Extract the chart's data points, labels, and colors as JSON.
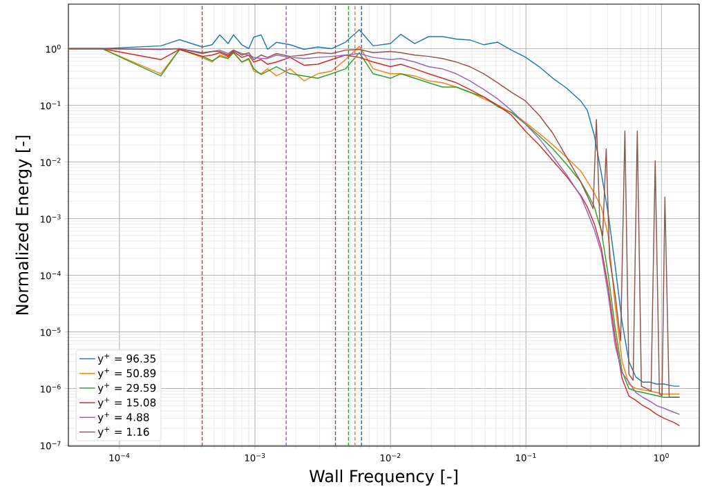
{
  "chart_data": {
    "type": "line",
    "xlabel": "Wall Frequency [-]",
    "ylabel": "Normalized Energy [-]",
    "log": "xy",
    "grid": true,
    "legend": "bottom left",
    "xlim": [
      4.2e-05,
      1.9
    ],
    "ylim": [
      9.6e-08,
      6.1
    ],
    "xticks": [
      {
        "value": 0.0001,
        "label": "10$^{−4}$"
      },
      {
        "value": 0.001,
        "label": "10$^{−3}$"
      },
      {
        "value": 0.01,
        "label": "10$^{−2}$"
      },
      {
        "value": 0.1,
        "label": "10$^{−1}$"
      },
      {
        "value": 1,
        "label": "10$^{0}$"
      }
    ],
    "yticks": [
      {
        "value": 1e-07,
        "label": "10$^{−7}$"
      },
      {
        "value": 1e-06,
        "label": "10$^{−6}$"
      },
      {
        "value": 1e-05,
        "label": "10$^{−5}$"
      },
      {
        "value": 0.0001,
        "label": "10$^{−4}$"
      },
      {
        "value": 0.001,
        "label": "10$^{−3}$"
      },
      {
        "value": 0.01,
        "label": "10$^{−2}$"
      },
      {
        "value": 0.1,
        "label": "10$^{−1}$"
      },
      {
        "value": 1,
        "label": "10$^{0}$"
      }
    ],
    "x": [
      4.25e-05,
      7.45e-05,
      0.000202,
      0.000278,
      0.000409,
      0.000483,
      0.00055,
      0.000633,
      0.000695,
      0.0008,
      0.0009,
      0.00098,
      0.00111,
      0.00124,
      0.00144,
      0.00182,
      0.0023,
      0.00291,
      0.00368,
      0.00466,
      0.00589,
      0.00745,
      0.01,
      0.0119,
      0.0151,
      0.0191,
      0.0242,
      0.0306,
      0.0386,
      0.0489,
      0.0618,
      0.0782,
      0.0989,
      0.125,
      0.158,
      0.2,
      0.253,
      0.284,
      0.32,
      0.36,
      0.405,
      0.455,
      0.512,
      0.575,
      0.647,
      0.728,
      0.819,
      0.92,
      1.04,
      1.24,
      1.36
    ],
    "series": [
      {
        "name": "y$^{+}$ = 96.35",
        "color": "#1f77b4",
        "values": [
          1.0,
          1.0,
          1.12,
          1.44,
          1.07,
          1.17,
          1.75,
          1.23,
          1.75,
          1.17,
          1.0,
          1.6,
          1.75,
          0.97,
          1.29,
          1.17,
          0.97,
          1.07,
          1.0,
          1.3,
          2.16,
          1.12,
          1.23,
          1.79,
          1.23,
          1.63,
          1.63,
          1.48,
          1.42,
          1.17,
          1.3,
          0.94,
          0.71,
          0.48,
          0.3,
          0.2,
          0.12,
          0.081,
          0.029,
          0.0063,
          0.0012,
          0.00015,
          1.5e-05,
          3e-06,
          1.6e-06,
          1.3e-06,
          1.3e-06,
          1.2e-06,
          1.2e-06,
          1.1e-06,
          1.1e-06
        ]
      },
      {
        "name": "y$^{+}$ = 50.89",
        "color": "#ff7f0e",
        "values": [
          1.0,
          1.0,
          0.36,
          0.97,
          0.7,
          0.58,
          0.77,
          0.7,
          0.85,
          0.58,
          0.64,
          0.4,
          0.36,
          0.44,
          0.33,
          0.44,
          0.27,
          0.36,
          0.4,
          0.64,
          1.1,
          0.44,
          0.36,
          0.36,
          0.33,
          0.27,
          0.25,
          0.21,
          0.17,
          0.13,
          0.1,
          0.075,
          0.05,
          0.032,
          0.02,
          0.012,
          0.007,
          0.0045,
          0.0028,
          0.0016,
          0.0005,
          3e-05,
          3e-06,
          1.2e-06,
          1e-06,
          9.5e-07,
          9e-07,
          8.5e-07,
          8e-07,
          8e-07,
          8e-07
        ]
      },
      {
        "name": "y$^{+}$ = 29.59",
        "color": "#2ca02c",
        "values": [
          1.0,
          1.0,
          0.33,
          0.97,
          0.73,
          0.61,
          0.73,
          0.67,
          0.85,
          0.58,
          0.67,
          0.44,
          0.35,
          0.4,
          0.48,
          0.36,
          0.33,
          0.3,
          0.36,
          0.44,
          0.85,
          0.36,
          0.3,
          0.36,
          0.3,
          0.25,
          0.21,
          0.21,
          0.17,
          0.14,
          0.095,
          0.074,
          0.047,
          0.029,
          0.017,
          0.009,
          0.0045,
          0.0028,
          0.0016,
          0.0006,
          0.0001,
          1.2e-05,
          2e-06,
          1e-06,
          9e-07,
          8.5e-07,
          8e-07,
          7.5e-07,
          7e-07,
          7e-07,
          7e-07
        ]
      },
      {
        "name": "y$^{+}$ = 15.08",
        "color": "#d62728",
        "values": [
          1.0,
          1.0,
          0.64,
          0.97,
          0.73,
          0.77,
          0.85,
          0.73,
          0.89,
          0.7,
          0.77,
          0.58,
          0.64,
          0.53,
          0.58,
          0.7,
          0.51,
          0.53,
          0.64,
          0.77,
          0.7,
          0.58,
          0.48,
          0.53,
          0.44,
          0.36,
          0.3,
          0.25,
          0.19,
          0.14,
          0.1,
          0.067,
          0.035,
          0.02,
          0.0105,
          0.0055,
          0.0026,
          0.0016,
          0.0008,
          0.0003,
          6e-05,
          8e-06,
          1.5e-06,
          7.4e-07,
          6.2e-07,
          5e-07,
          4.3e-07,
          3.5e-07,
          3e-07,
          2.5e-07,
          2.2e-07
        ]
      },
      {
        "name": "y$^{+}$ = 4.88",
        "color": "#9467bd",
        "values": [
          1.0,
          1.0,
          0.97,
          1.0,
          0.85,
          0.89,
          0.94,
          0.82,
          0.94,
          0.82,
          0.77,
          0.7,
          0.67,
          0.67,
          0.77,
          0.7,
          0.67,
          0.7,
          0.73,
          0.77,
          0.82,
          0.7,
          0.64,
          0.67,
          0.58,
          0.48,
          0.44,
          0.36,
          0.27,
          0.19,
          0.13,
          0.081,
          0.047,
          0.026,
          0.0125,
          0.0059,
          0.0025,
          0.0013,
          0.00063,
          0.00025,
          4.5e-05,
          5.8e-06,
          1.9e-06,
          1.3e-06,
          8.5e-07,
          7e-07,
          6e-07,
          5e-07,
          4.5e-07,
          3.8e-07,
          3.5e-07
        ]
      },
      {
        "name": "y$^{+}$ = 1.16",
        "color": "#8c564b",
        "x": [
          4.25e-05,
          7.45e-05,
          0.000202,
          0.000278,
          0.000409,
          0.000483,
          0.00055,
          0.000633,
          0.000695,
          0.0008,
          0.0009,
          0.00098,
          0.00111,
          0.00124,
          0.00144,
          0.00182,
          0.0023,
          0.00291,
          0.00368,
          0.00466,
          0.00589,
          0.00745,
          0.01,
          0.0119,
          0.0151,
          0.0191,
          0.0242,
          0.0306,
          0.0386,
          0.0489,
          0.0618,
          0.0782,
          0.0989,
          0.125,
          0.158,
          0.2,
          0.253,
          0.284,
          0.313,
          0.331,
          0.351,
          0.368,
          0.391,
          0.414,
          0.455,
          0.5,
          0.537,
          0.575,
          0.618,
          0.663,
          0.711,
          0.773,
          0.838,
          0.899,
          0.966,
          1.01,
          1.06,
          1.14,
          1.24,
          1.36
        ],
        "values": [
          1.0,
          1.0,
          0.97,
          1.0,
          0.82,
          0.89,
          0.89,
          0.77,
          0.94,
          0.77,
          0.85,
          0.64,
          0.77,
          0.7,
          0.82,
          0.73,
          0.77,
          0.85,
          0.82,
          0.94,
          0.97,
          0.85,
          0.89,
          0.85,
          0.77,
          0.73,
          0.67,
          0.58,
          0.48,
          0.36,
          0.25,
          0.17,
          0.12,
          0.067,
          0.032,
          0.012,
          0.0045,
          0.0025,
          0.0015,
          0.056,
          0.0008,
          0.0005,
          0.017,
          0.0002,
          4.5e-05,
          7e-06,
          0.035,
          1.8e-06,
          1.4e-06,
          0.035,
          1.1e-06,
          1e-06,
          9e-07,
          0.0105,
          8e-07,
          7.5e-07,
          0.0024,
          7e-07,
          7e-07,
          7e-07
        ]
      }
    ],
    "ref_lines": [
      {
        "axis": "x",
        "value": 0.000408,
        "color": "#8c564b",
        "line_style": "dashed"
      },
      {
        "axis": "x",
        "value": 0.0017,
        "color": "#9467bd",
        "line_style": "dashed"
      },
      {
        "axis": "x",
        "value": 0.00392,
        "color": "#d62728",
        "line_style": "dashed"
      },
      {
        "axis": "x",
        "value": 0.0049,
        "color": "#2ca02c",
        "line_style": "dashed"
      },
      {
        "axis": "x",
        "value": 0.00547,
        "color": "#ff7f0e",
        "line_style": "dashed"
      },
      {
        "axis": "x",
        "value": 0.00612,
        "color": "#1f77b4",
        "line_style": "dashed"
      }
    ]
  }
}
